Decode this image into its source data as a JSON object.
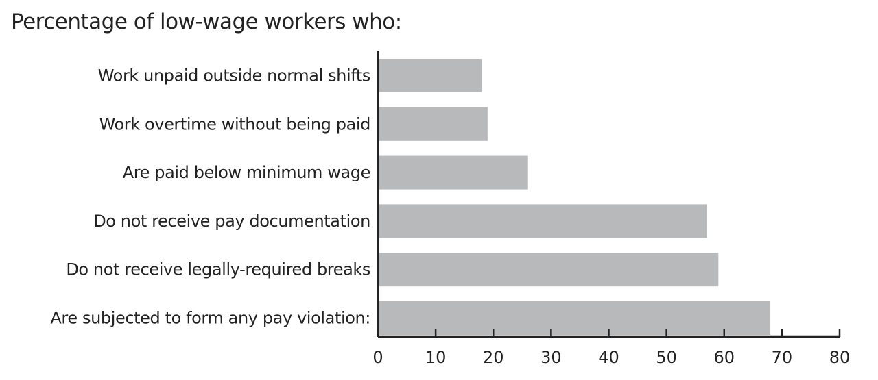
{
  "chart_data": {
    "type": "bar",
    "orientation": "horizontal",
    "title": "Percentage of low-wage workers who:",
    "categories": [
      "Work unpaid outside normal shifts",
      "Work overtime without being paid",
      "Are paid below minimum wage",
      "Do not receive pay documentation",
      "Do not receive legally-required breaks",
      "Are subjected to form any pay violation:"
    ],
    "values": [
      18,
      19,
      26,
      57,
      59,
      68
    ],
    "xlim": [
      0,
      80
    ],
    "xticks": [
      "0",
      "10",
      "20",
      "30",
      "40",
      "50",
      "60",
      "70",
      "80"
    ],
    "xlabel": "",
    "ylabel": "",
    "grid": false,
    "bar_color": "#b8b9bb"
  }
}
